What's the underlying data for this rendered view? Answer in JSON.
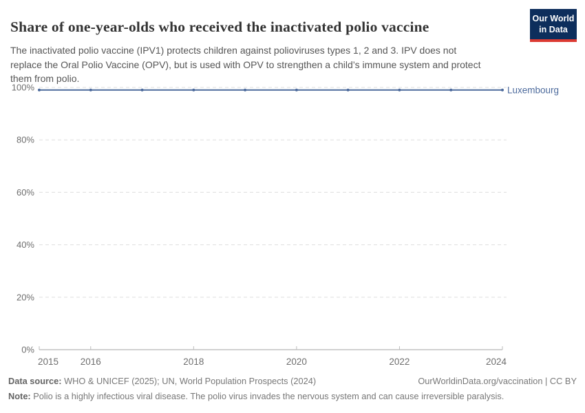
{
  "header": {
    "title": "Share of one-year-olds who received the inactivated polio vaccine",
    "subtitle": "The inactivated polio vaccine (IPV1) protects children against polioviruses types 1, 2 and 3. IPV does not\nreplace the Oral Polio Vaccine (OPV), but is used with OPV to strengthen a child’s immune system and protect\nthem from polio.",
    "logo": {
      "line1": "Our World",
      "line2": "in Data",
      "bg_color": "#0d2e5c",
      "accent_color": "#dc3a32"
    }
  },
  "chart_data": {
    "type": "line",
    "title": "Share of one-year-olds who received the inactivated polio vaccine",
    "x": [
      2015,
      2016,
      2017,
      2018,
      2019,
      2020,
      2021,
      2022,
      2023,
      2024
    ],
    "series": [
      {
        "name": "Luxembourg",
        "color": "#4C6A9C",
        "values": [
          99,
          99,
          99,
          99,
          99,
          99,
          99,
          99,
          99,
          99
        ]
      }
    ],
    "xlabel": "",
    "ylabel": "",
    "ylim": [
      0,
      100
    ],
    "yticks": [
      0,
      20,
      40,
      60,
      80,
      100
    ],
    "ytick_suffix": "%",
    "xticks": [
      2015,
      2016,
      2018,
      2020,
      2022,
      2024
    ],
    "grid": "horizontal-dashed",
    "grid_color": "#dedede",
    "axis_color": "#a3a3a3",
    "tick_label_color": "#6e6e6e",
    "legend_position": "end-of-line-label"
  },
  "footer": {
    "datasource_label": "Data source:",
    "datasource_text": " WHO & UNICEF (2025); UN, World Population Prospects (2024)",
    "link": "OurWorldinData.org/vaccination | CC BY",
    "note_label": "Note:",
    "note_text": " Polio is a highly infectious viral disease. The polio virus invades the nervous system and can cause irreversible paralysis."
  }
}
